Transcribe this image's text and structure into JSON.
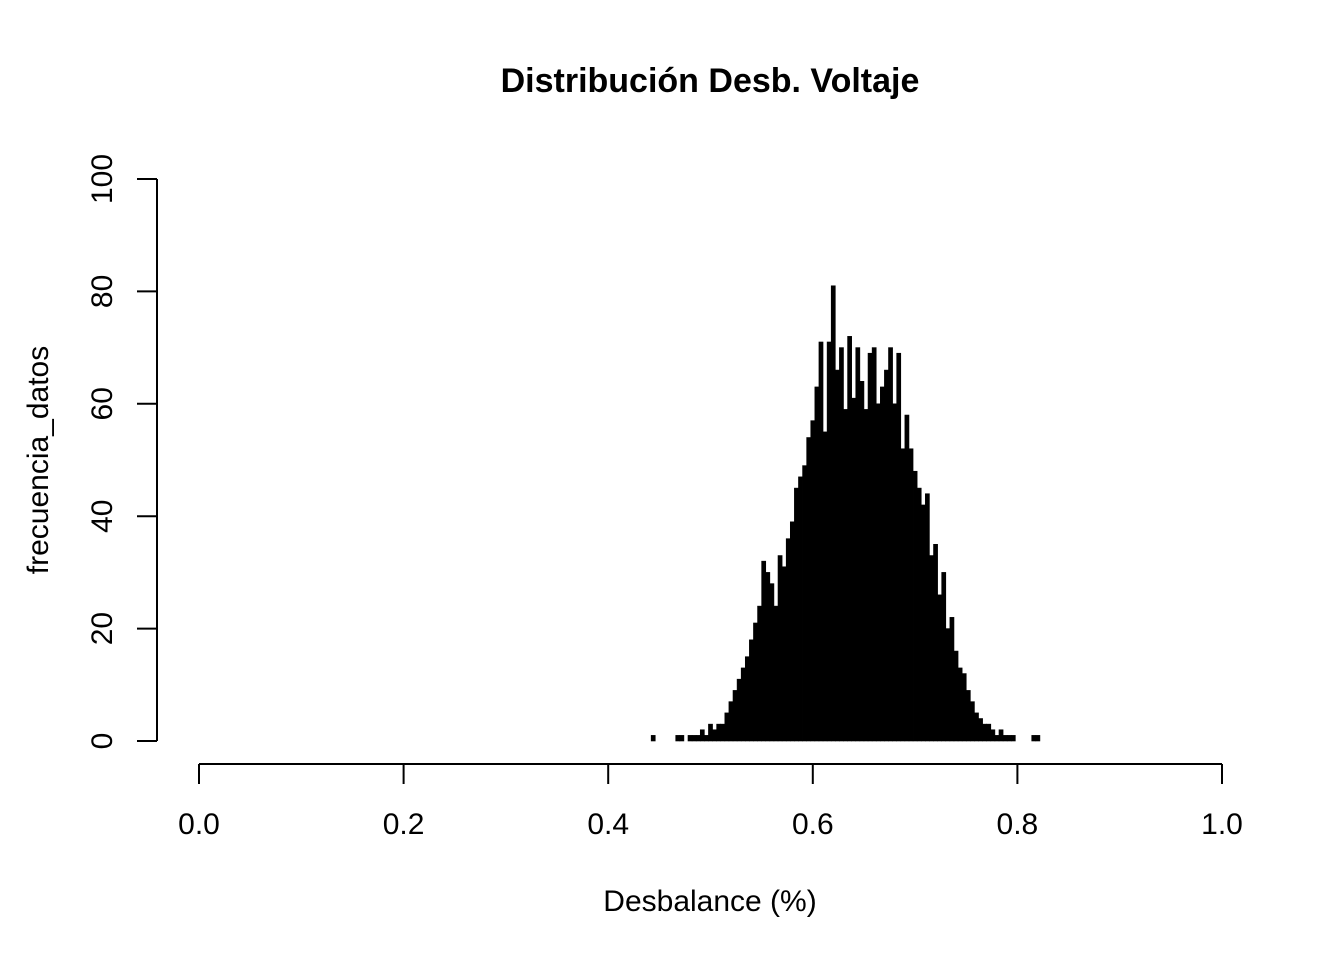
{
  "chart_data": {
    "type": "bar",
    "title": "Distribución Desb. Voltaje",
    "xlabel": "Desbalance (%)",
    "ylabel": "frecuencia_datos",
    "xlim": [
      0,
      1
    ],
    "ylim": [
      0,
      100
    ],
    "xticks": [
      "0.0",
      "0.2",
      "0.4",
      "0.6",
      "0.8",
      "1.0"
    ],
    "yticks": [
      "0",
      "20",
      "40",
      "60",
      "80",
      "100"
    ],
    "grid": false,
    "legend": "none",
    "bar_color": "#000000",
    "x": [
      0.444,
      0.448,
      0.452,
      0.456,
      0.46,
      0.464,
      0.468,
      0.472,
      0.476,
      0.48,
      0.484,
      0.488,
      0.492,
      0.496,
      0.5,
      0.504,
      0.508,
      0.512,
      0.516,
      0.52,
      0.524,
      0.528,
      0.532,
      0.536,
      0.54,
      0.544,
      0.548,
      0.552,
      0.556,
      0.56,
      0.564,
      0.568,
      0.572,
      0.576,
      0.58,
      0.584,
      0.588,
      0.592,
      0.596,
      0.6,
      0.604,
      0.608,
      0.612,
      0.616,
      0.62,
      0.624,
      0.628,
      0.632,
      0.636,
      0.64,
      0.644,
      0.648,
      0.652,
      0.656,
      0.66,
      0.664,
      0.668,
      0.672,
      0.676,
      0.68,
      0.684,
      0.688,
      0.692,
      0.696,
      0.7,
      0.704,
      0.708,
      0.712,
      0.716,
      0.72,
      0.724,
      0.728,
      0.732,
      0.736,
      0.74,
      0.744,
      0.748,
      0.752,
      0.756,
      0.76,
      0.764,
      0.768,
      0.772,
      0.776,
      0.78,
      0.784,
      0.788,
      0.792,
      0.796,
      0.8,
      0.804,
      0.808,
      0.812,
      0.816,
      0.82
    ],
    "values": [
      1,
      0,
      0,
      0,
      0,
      0,
      1,
      1,
      0,
      1,
      1,
      1,
      2,
      1,
      3,
      2,
      3,
      3,
      5,
      7,
      9,
      11,
      13,
      15,
      18,
      21,
      24,
      32,
      30,
      28,
      24,
      33,
      31,
      36,
      39,
      45,
      47,
      49,
      54,
      57,
      63,
      71,
      55,
      71,
      81,
      66,
      70,
      59,
      72,
      61,
      70,
      64,
      59,
      69,
      70,
      60,
      63,
      66,
      70,
      60,
      69,
      52,
      58,
      52,
      48,
      45,
      42,
      44,
      33,
      35,
      26,
      30,
      20,
      22,
      16,
      13,
      12,
      9,
      7,
      5,
      4,
      3,
      3,
      2,
      1,
      2,
      1,
      1,
      1,
      0,
      0,
      0,
      0,
      1,
      1
    ]
  }
}
